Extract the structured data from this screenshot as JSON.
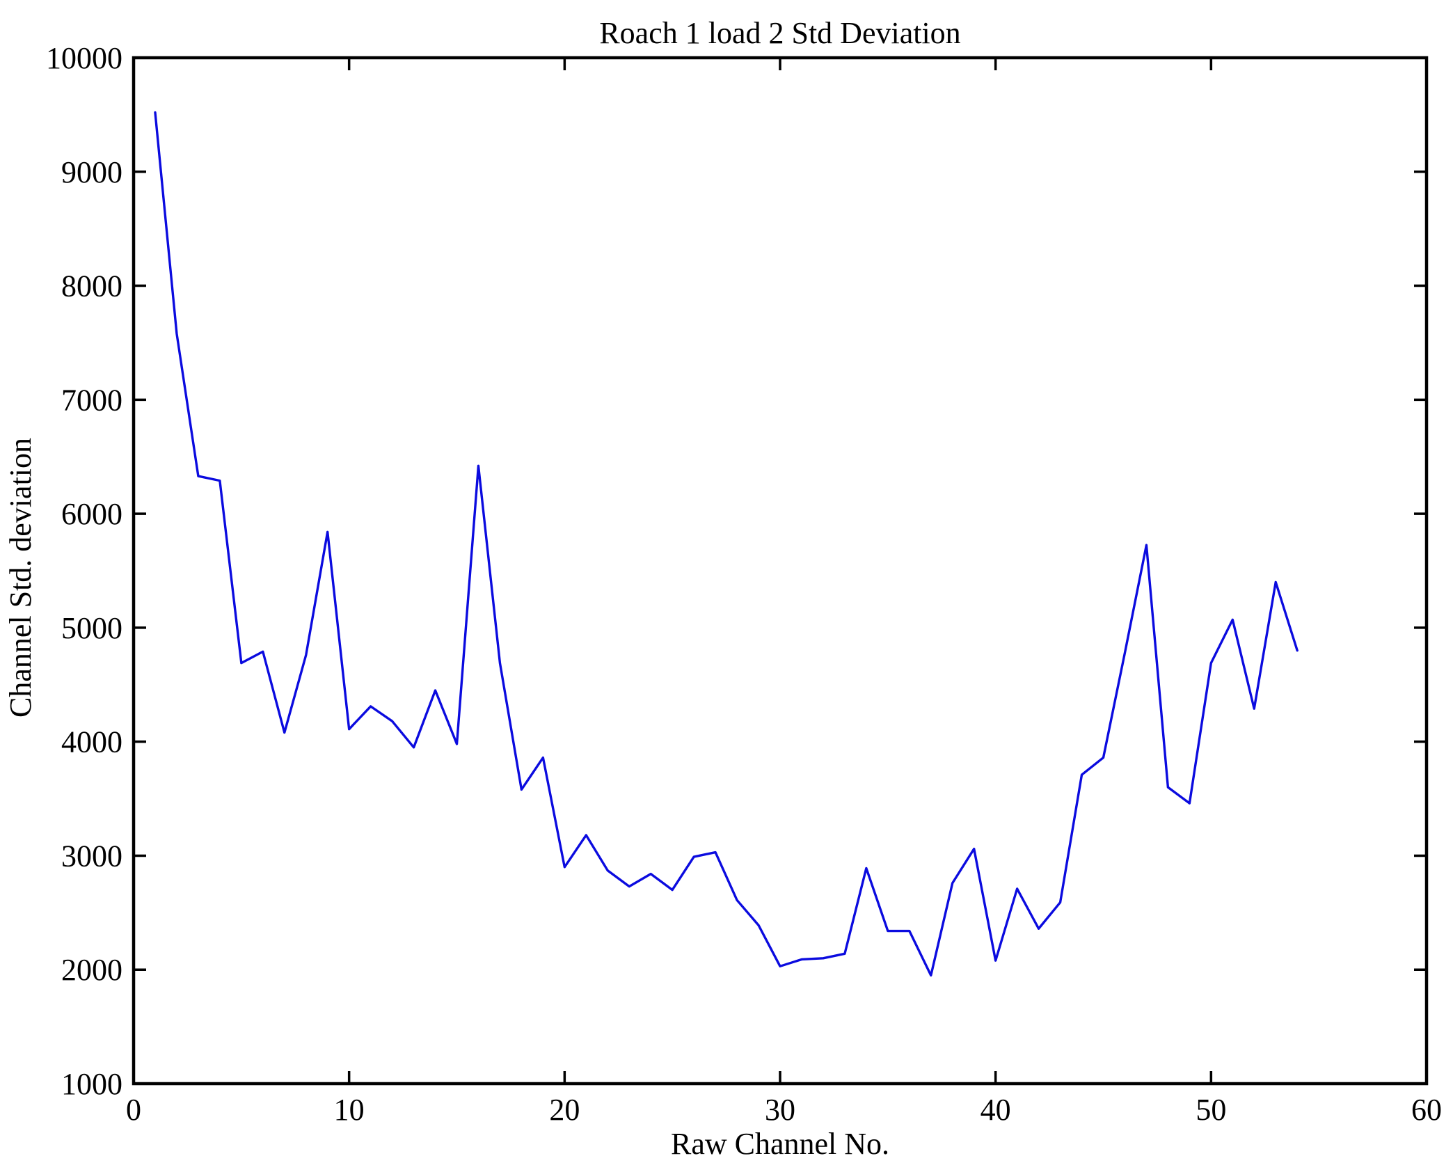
{
  "figure": {
    "background": "#ffffff",
    "axis_color": "#000000",
    "text_color": "#000000"
  },
  "chart_data": {
    "type": "line",
    "title": "Roach 1 load 2 Std Deviation",
    "xlabel": "Raw Channel No.",
    "ylabel": "Channel Std. deviation",
    "xlim": [
      0,
      60
    ],
    "ylim": [
      1000,
      10000
    ],
    "xticks": [
      0,
      10,
      20,
      30,
      40,
      50,
      60
    ],
    "yticks": [
      1000,
      2000,
      3000,
      4000,
      5000,
      6000,
      7000,
      8000,
      9000,
      10000
    ],
    "grid": false,
    "legend": "none",
    "tick_direction": "in",
    "line_color": "#0b0bdf",
    "line_width": 3.4,
    "x": [
      1,
      2,
      3,
      4,
      5,
      6,
      7,
      8,
      9,
      10,
      11,
      12,
      13,
      14,
      15,
      16,
      17,
      18,
      19,
      20,
      21,
      22,
      23,
      24,
      25,
      26,
      27,
      28,
      29,
      30,
      31,
      32,
      33,
      34,
      35,
      36,
      37,
      38,
      39,
      40,
      41,
      42,
      43,
      44,
      45,
      46,
      47,
      48,
      49,
      50,
      51,
      52,
      53,
      54
    ],
    "values": [
      9520,
      7580,
      6330,
      6290,
      4690,
      4790,
      4080,
      4760,
      5840,
      4110,
      4310,
      4180,
      3950,
      4450,
      3980,
      6420,
      4690,
      3580,
      3860,
      2900,
      3180,
      2870,
      2730,
      2840,
      2700,
      2990,
      3030,
      2610,
      2390,
      2030,
      2090,
      2100,
      2140,
      2890,
      2340,
      2340,
      1950,
      2760,
      3060,
      2080,
      2710,
      2360,
      2590,
      3710,
      3860,
      4780,
      5725,
      3600,
      3460,
      4690,
      5070,
      4290,
      5400,
      4800
    ]
  }
}
